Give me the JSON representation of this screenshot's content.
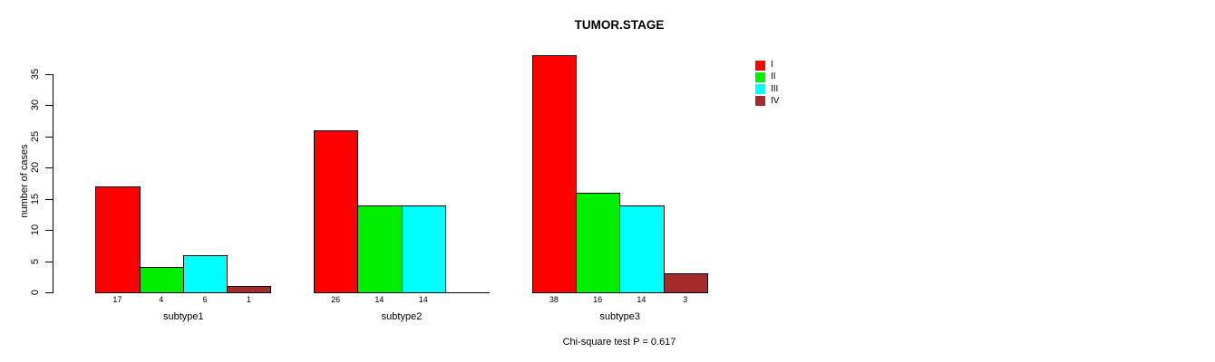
{
  "chart_data": {
    "type": "bar",
    "layout": "grouped",
    "title": "TUMOR.STAGE",
    "ylabel": "number of cases",
    "xlabel": "",
    "ylim": [
      0,
      35
    ],
    "yticks": [
      0,
      5,
      10,
      15,
      20,
      25,
      30,
      35
    ],
    "grid": false,
    "categories": [
      "subtype1",
      "subtype2",
      "subtype3"
    ],
    "series": [
      {
        "name": "I",
        "color": "#ff0000",
        "values": [
          17,
          26,
          38
        ]
      },
      {
        "name": "II",
        "color": "#00ee00",
        "values": [
          4,
          14,
          16
        ]
      },
      {
        "name": "III",
        "color": "#00ffff",
        "values": [
          6,
          14,
          14
        ]
      },
      {
        "name": "IV",
        "color": "#a52a2a",
        "values": [
          1,
          0,
          3
        ]
      }
    ],
    "value_labels_under_bars": true,
    "zero_values_unlabeled": true,
    "legend_position": "top-right",
    "legend_labels": [
      "I",
      "II",
      "III",
      "IV"
    ],
    "annotation": "Chi-square test P = 0.617",
    "axis_color": "#000000",
    "bar_border_color": "#000000",
    "text_color": "#000000"
  }
}
